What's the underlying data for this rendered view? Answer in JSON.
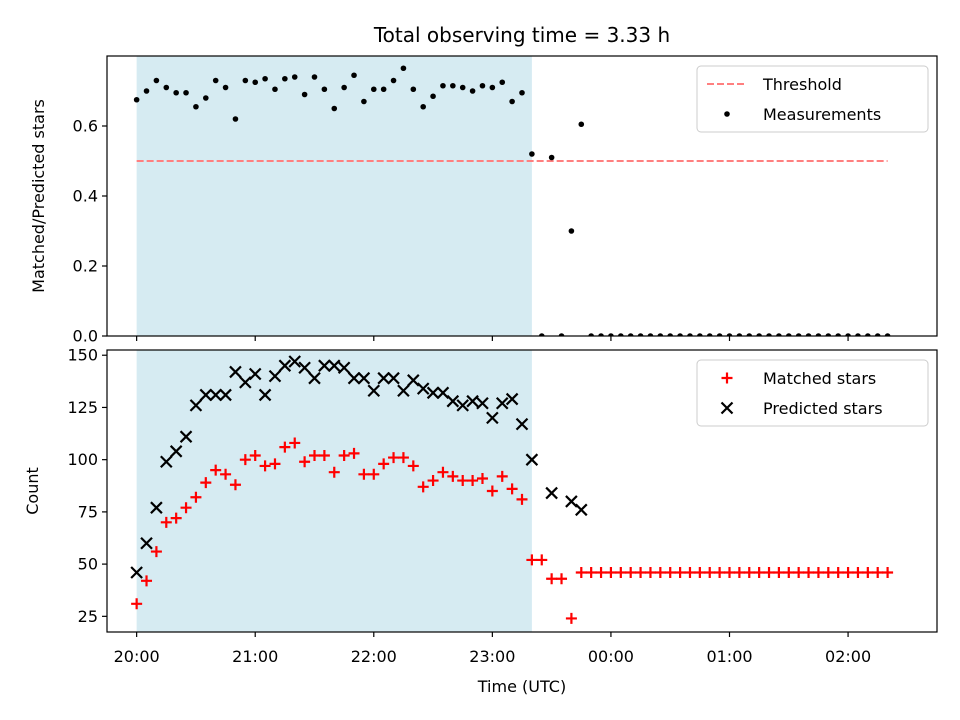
{
  "chart_data": [
    {
      "type": "scatter",
      "title": "Total observing time = 3.33 h",
      "xlabel": "",
      "ylabel": "Matched/Predicted stars",
      "xlim": [
        "19:45",
        "02:45"
      ],
      "ylim": [
        0,
        0.8
      ],
      "yticks": [
        "0.0",
        "0.2",
        "0.4",
        "0.6"
      ],
      "grid": false,
      "legend_position": "top-right",
      "shaded_interval": {
        "start": "20:00",
        "end": "23:20",
        "color": "#add8e6"
      },
      "threshold": {
        "name": "Threshold",
        "value": 0.5,
        "x_start": "20:00",
        "x_end": "02:20",
        "color": "#ff7f7f",
        "style": "dashed"
      },
      "series": [
        {
          "name": "Measurements",
          "color": "#000000",
          "marker": "dot",
          "x": [
            "20:00",
            "20:05",
            "20:10",
            "20:15",
            "20:20",
            "20:25",
            "20:30",
            "20:35",
            "20:40",
            "20:45",
            "20:50",
            "20:55",
            "21:00",
            "21:05",
            "21:10",
            "21:15",
            "21:20",
            "21:25",
            "21:30",
            "21:35",
            "21:40",
            "21:45",
            "21:50",
            "21:55",
            "22:00",
            "22:05",
            "22:10",
            "22:15",
            "22:20",
            "22:25",
            "22:30",
            "22:35",
            "22:40",
            "22:45",
            "22:50",
            "22:55",
            "23:00",
            "23:05",
            "23:10",
            "23:15",
            "23:20",
            "23:25",
            "23:30",
            "23:35",
            "23:40",
            "23:45",
            "23:50",
            "23:55",
            "00:00",
            "00:05",
            "00:10",
            "00:15",
            "00:20",
            "00:25",
            "00:30",
            "00:35",
            "00:40",
            "00:45",
            "00:50",
            "00:55",
            "01:00",
            "01:05",
            "01:10",
            "01:15",
            "01:20",
            "01:25",
            "01:30",
            "01:35",
            "01:40",
            "01:45",
            "01:50",
            "01:55",
            "02:00",
            "02:05",
            "02:10",
            "02:15",
            "02:20"
          ],
          "y": [
            0.675,
            0.7,
            0.73,
            0.71,
            0.695,
            0.695,
            0.655,
            0.68,
            0.73,
            0.71,
            0.62,
            0.73,
            0.725,
            0.735,
            0.705,
            0.735,
            0.74,
            0.69,
            0.74,
            0.705,
            0.65,
            0.71,
            0.745,
            0.67,
            0.705,
            0.705,
            0.73,
            0.765,
            0.705,
            0.655,
            0.685,
            0.715,
            0.715,
            0.71,
            0.7,
            0.715,
            0.71,
            0.725,
            0.67,
            0.695,
            0.52,
            0.0,
            0.51,
            0.0,
            0.3,
            0.605,
            0.0,
            0.0,
            0.0,
            0.0,
            0.0,
            0.0,
            0.0,
            0.0,
            0.0,
            0.0,
            0.0,
            0.0,
            0.0,
            0.0,
            0.0,
            0.0,
            0.0,
            0.0,
            0.0,
            0.0,
            0.0,
            0.0,
            0.0,
            0.0,
            0.0,
            0.0,
            0.0,
            0.0,
            0.0,
            0.0,
            0.0
          ]
        }
      ]
    },
    {
      "type": "scatter",
      "title": "",
      "xlabel": "Time (UTC)",
      "ylabel": "Count",
      "xlim": [
        "19:45",
        "02:45"
      ],
      "ylim": [
        17.5,
        152.5
      ],
      "yticks": [
        "25",
        "50",
        "75",
        "100",
        "125",
        "150"
      ],
      "xticks": [
        "20:00",
        "21:00",
        "22:00",
        "23:00",
        "00:00",
        "01:00",
        "02:00"
      ],
      "grid": false,
      "legend_position": "top-right",
      "shaded_interval": {
        "start": "20:00",
        "end": "23:20",
        "color": "#add8e6"
      },
      "series": [
        {
          "name": "Matched stars",
          "color": "#ff0000",
          "marker": "plus",
          "x": [
            "20:00",
            "20:05",
            "20:10",
            "20:15",
            "20:20",
            "20:25",
            "20:30",
            "20:35",
            "20:40",
            "20:45",
            "20:50",
            "20:55",
            "21:00",
            "21:05",
            "21:10",
            "21:15",
            "21:20",
            "21:25",
            "21:30",
            "21:35",
            "21:40",
            "21:45",
            "21:50",
            "21:55",
            "22:00",
            "22:05",
            "22:10",
            "22:15",
            "22:20",
            "22:25",
            "22:30",
            "22:35",
            "22:40",
            "22:45",
            "22:50",
            "22:55",
            "23:00",
            "23:05",
            "23:10",
            "23:15",
            "23:20",
            "23:25",
            "23:30",
            "23:35",
            "23:40",
            "23:45",
            "23:50",
            "23:55",
            "00:00",
            "00:05",
            "00:10",
            "00:15",
            "00:20",
            "00:25",
            "00:30",
            "00:35",
            "00:40",
            "00:45",
            "00:50",
            "00:55",
            "01:00",
            "01:05",
            "01:10",
            "01:15",
            "01:20",
            "01:25",
            "01:30",
            "01:35",
            "01:40",
            "01:45",
            "01:50",
            "01:55",
            "02:00",
            "02:05",
            "02:10",
            "02:15",
            "02:20"
          ],
          "y": [
            31,
            42,
            56,
            70,
            72,
            77,
            82,
            89,
            95,
            93,
            88,
            100,
            102,
            97,
            98,
            106,
            108,
            99,
            102,
            102,
            94,
            102,
            103,
            93,
            93,
            98,
            101,
            101,
            97,
            87,
            90,
            94,
            92,
            90,
            90,
            91,
            85,
            92,
            86,
            81,
            52,
            52,
            43,
            43,
            24,
            46,
            46,
            46,
            46,
            46,
            46,
            46,
            46,
            46,
            46,
            46,
            46,
            46,
            46,
            46,
            46,
            46,
            46,
            46,
            46,
            46,
            46,
            46,
            46,
            46,
            46,
            46,
            46,
            46,
            46,
            46,
            46
          ]
        },
        {
          "name": "Predicted stars",
          "color": "#000000",
          "marker": "x",
          "x": [
            "20:00",
            "20:05",
            "20:10",
            "20:15",
            "20:20",
            "20:25",
            "20:30",
            "20:35",
            "20:40",
            "20:45",
            "20:50",
            "20:55",
            "21:00",
            "21:05",
            "21:10",
            "21:15",
            "21:20",
            "21:25",
            "21:30",
            "21:35",
            "21:40",
            "21:45",
            "21:50",
            "21:55",
            "22:00",
            "22:05",
            "22:10",
            "22:15",
            "22:20",
            "22:25",
            "22:30",
            "22:35",
            "22:40",
            "22:45",
            "22:50",
            "22:55",
            "23:00",
            "23:05",
            "23:10",
            "23:15",
            "23:20",
            "23:30",
            "23:40",
            "23:45"
          ],
          "y": [
            46,
            60,
            77,
            99,
            104,
            111,
            126,
            131,
            131,
            131,
            142,
            137,
            141,
            131,
            140,
            145,
            147,
            144,
            139,
            145,
            145,
            144,
            139,
            139,
            133,
            139,
            139,
            133,
            138,
            134,
            132,
            132,
            128,
            126,
            128,
            127,
            120,
            127,
            129,
            117,
            100,
            84,
            80,
            76
          ]
        }
      ]
    }
  ]
}
